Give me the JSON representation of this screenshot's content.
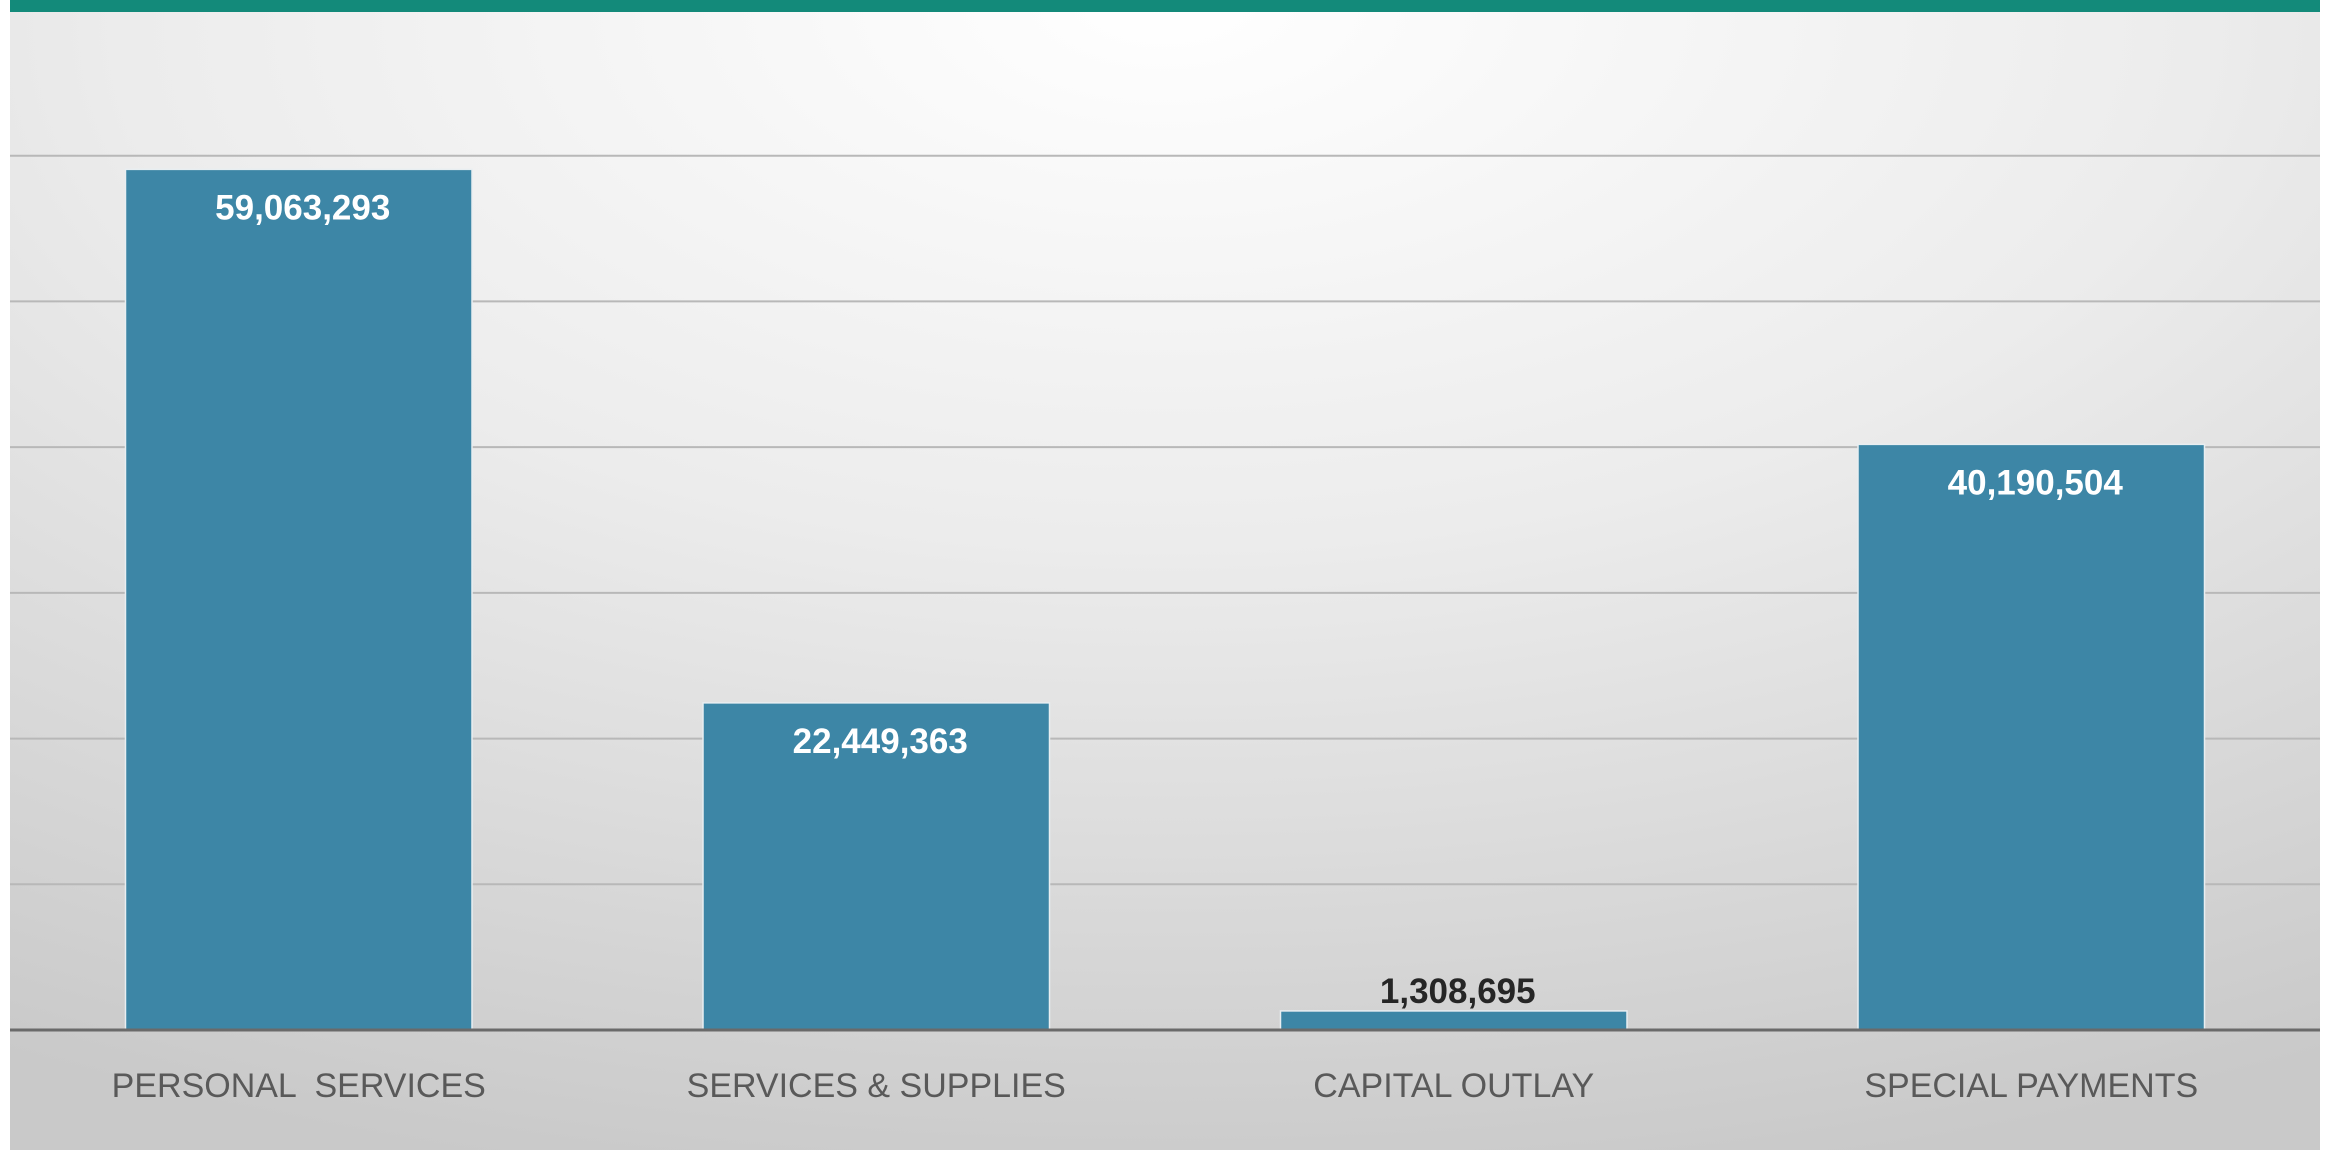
{
  "colors": {
    "bar": "#3d86a6",
    "top_rule": "#138a7a",
    "gridline": "#b8b8b8",
    "axis": "#6a6a6a",
    "label_inside": "#ffffff",
    "label_outside": "#262626",
    "tick_label": "#595959"
  },
  "chart_data": {
    "type": "bar",
    "title": "",
    "xlabel": "",
    "ylabel": "",
    "categories": [
      "PERSONAL  SERVICES",
      "SERVICES & SUPPLIES",
      "CAPITAL OUTLAY",
      "SPECIAL PAYMENTS"
    ],
    "values": [
      59063293,
      22449363,
      1308695,
      40190504
    ],
    "data_labels": [
      "59,063,293",
      "22,449,363",
      "1,308,695",
      "40,190,504"
    ],
    "ylim": [
      0,
      70000000
    ],
    "gridline_step": 10000000,
    "grid": true,
    "legend": "none"
  }
}
